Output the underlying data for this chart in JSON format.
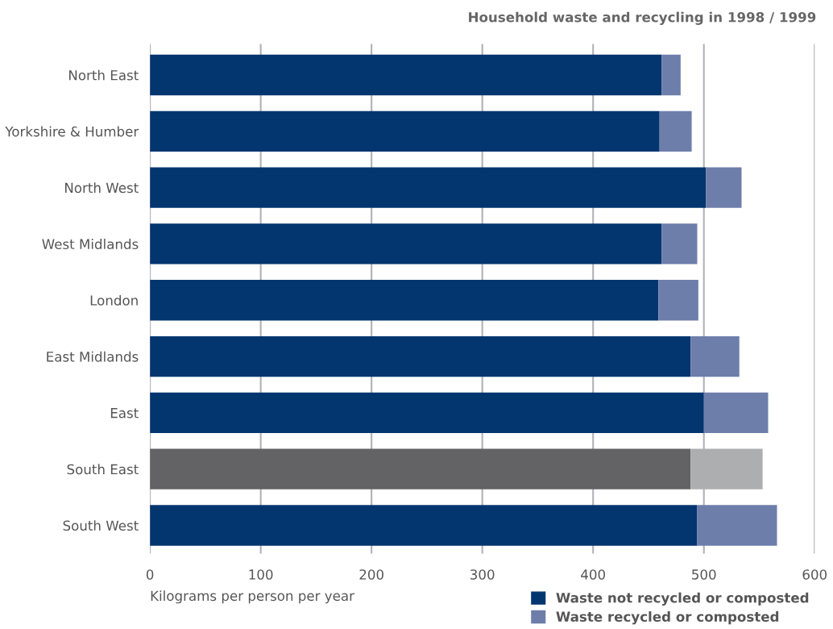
{
  "chart_data": {
    "type": "bar",
    "orientation": "horizontal",
    "stacked": true,
    "title": "Household waste and recycling in 1998 / 1999",
    "xlabel": "Kilograms per person per year",
    "categories": [
      "North East",
      "Yorkshire & Humber",
      "North West",
      "West Midlands",
      "London",
      "East Midlands",
      "East",
      "South East",
      "South West"
    ],
    "series": [
      {
        "name": "Waste not recycled or composted",
        "color": "#03356f",
        "colors": [
          "#03356f",
          "#03356f",
          "#03356f",
          "#03356f",
          "#03356f",
          "#03356f",
          "#03356f",
          "#636365",
          "#03356f"
        ],
        "values": [
          462,
          460,
          502,
          462,
          459,
          488,
          500,
          488,
          494
        ]
      },
      {
        "name": "Waste recycled or composted",
        "color": "#6e7eab",
        "colors": [
          "#6e7eab",
          "#6e7eab",
          "#6e7eab",
          "#6e7eab",
          "#6e7eab",
          "#6e7eab",
          "#6e7eab",
          "#adaeb0",
          "#6e7eab"
        ],
        "values": [
          17,
          29,
          32,
          32,
          36,
          44,
          58,
          65,
          72
        ]
      }
    ],
    "xlim": [
      0,
      600
    ],
    "xticks": [
      0,
      100,
      200,
      300,
      400,
      500,
      600
    ],
    "grid": "x",
    "legend": "bottom right"
  }
}
